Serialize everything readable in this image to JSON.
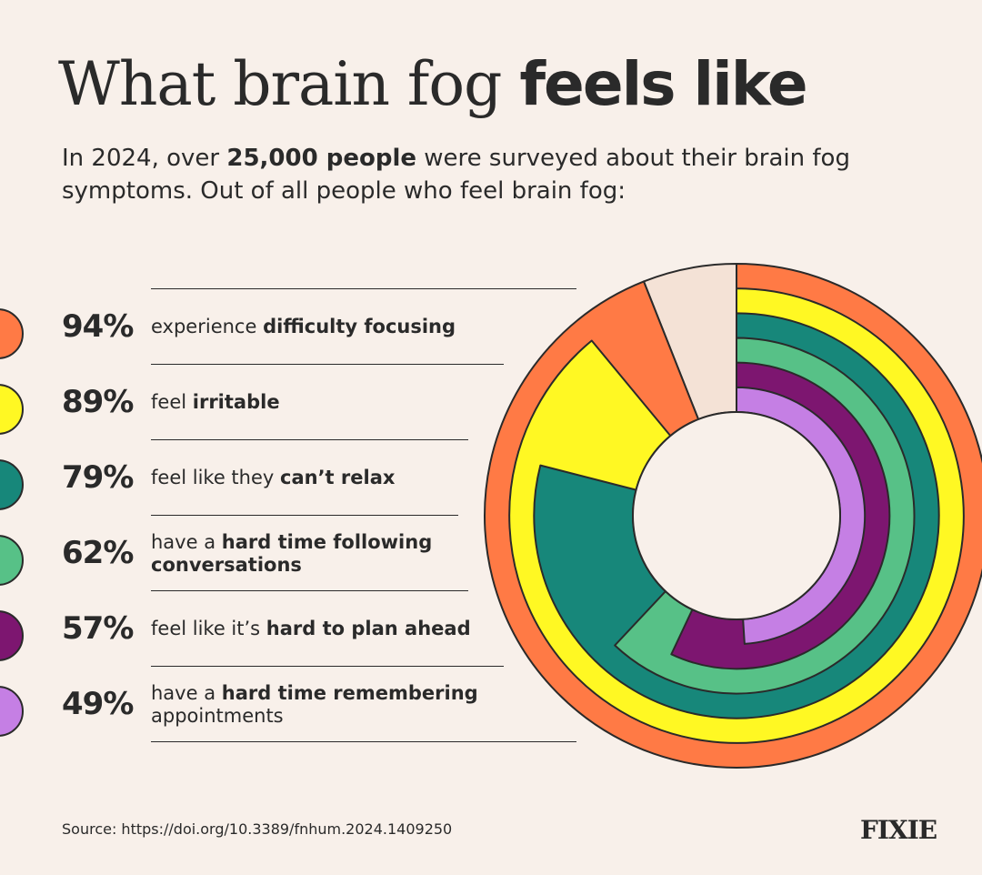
{
  "title": {
    "regular": "What brain fog",
    "bold": "feels like"
  },
  "subtitle": {
    "part1": "In 2024, over",
    "bold": "25,000 people",
    "part2": "were surveyed about their brain fog symptoms. Out of all people who feel brain fog:"
  },
  "items": [
    {
      "percent": "94%",
      "text": "experience",
      "bold": "difficulty focusing",
      "text_after": "",
      "color": "#ff7a45"
    },
    {
      "percent": "89%",
      "text": "feel",
      "bold": "irritable",
      "text_after": "",
      "color": "#fff823"
    },
    {
      "percent": "79%",
      "text": "feel like they",
      "bold": "can’t relax",
      "text_after": "",
      "color": "#17877a"
    },
    {
      "percent": "62%",
      "text": "have a",
      "bold": "hard time following conversations",
      "text_after": "",
      "color": "#57c187"
    },
    {
      "percent": "57%",
      "text": "feel like it’s",
      "bold": "hard to plan ahead",
      "text_after": "",
      "color": "#7d1670"
    },
    {
      "percent": "49%",
      "text": "have a",
      "bold": "hard time remembering",
      "text_after": "appointments",
      "color": "#c57fe4"
    }
  ],
  "chart_data": {
    "type": "radial-bar",
    "title": "What brain fog feels like",
    "categories": [
      "difficulty focusing",
      "irritable",
      "can’t relax",
      "hard time following conversations",
      "hard to plan ahead",
      "hard time remembering appointments"
    ],
    "values": [
      94,
      89,
      79,
      62,
      57,
      49
    ],
    "unit": "%",
    "ylim": [
      0,
      100
    ],
    "colors": [
      "#ff7a45",
      "#fff823",
      "#17877a",
      "#57c187",
      "#7d1670",
      "#c57fe4"
    ],
    "remainder_color": "#f4e2d6"
  },
  "source": "Source: https://doi.org/10.3389/fnhum.2024.1409250",
  "logo": "FIXIE"
}
